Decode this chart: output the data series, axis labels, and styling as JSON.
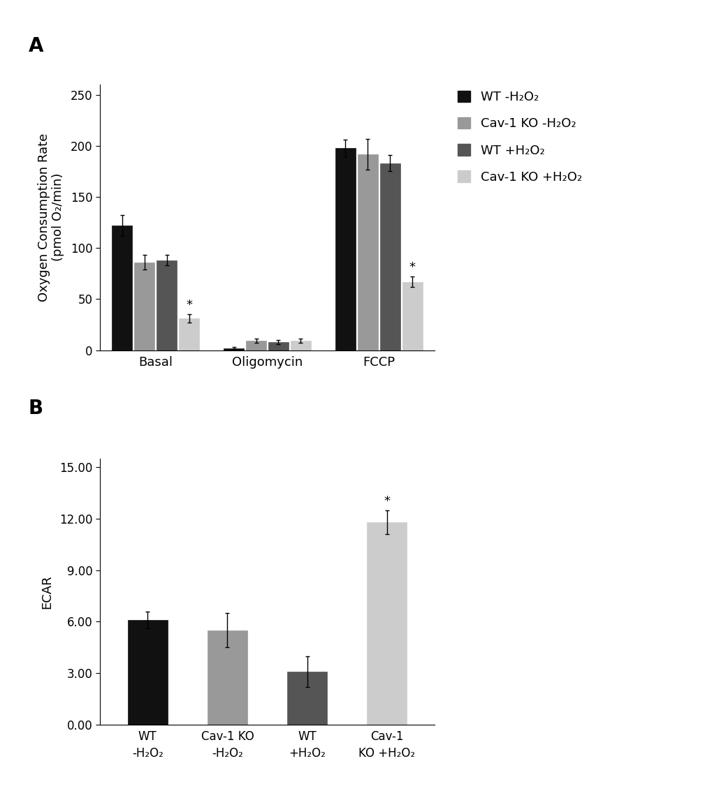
{
  "panel_A": {
    "groups": [
      "Basal",
      "Oligomycin",
      "FCCP"
    ],
    "series": [
      {
        "label": "WT -H₂O₂",
        "color": "#111111",
        "values": [
          122,
          2,
          198
        ],
        "errors": [
          10,
          1,
          8
        ]
      },
      {
        "label": "Cav-1 KO -H₂O₂",
        "color": "#999999",
        "values": [
          86,
          9,
          192
        ],
        "errors": [
          7,
          2,
          15
        ]
      },
      {
        "label": "WT +H₂O₂",
        "color": "#555555",
        "values": [
          88,
          8,
          183
        ],
        "errors": [
          5,
          2,
          8
        ]
      },
      {
        "label": "Cav-1 KO +H₂O₂",
        "color": "#cccccc",
        "values": [
          31,
          9,
          67
        ],
        "errors": [
          4,
          2,
          5
        ]
      }
    ],
    "ylabel": "Oxygen Consumption Rate\n(pmol O₂/min)",
    "ylim": [
      0,
      260
    ],
    "yticks": [
      0,
      50,
      100,
      150,
      200,
      250
    ],
    "sig_markers": {
      "Basal": [
        false,
        false,
        false,
        true
      ],
      "Oligomycin": [
        false,
        false,
        false,
        false
      ],
      "FCCP": [
        false,
        false,
        false,
        true
      ]
    },
    "panel_label": "A"
  },
  "panel_B": {
    "categories": [
      "WT\n-H₂O₂",
      "Cav-1 KO\n-H₂O₂",
      "WT\n+H₂O₂",
      "Cav-1\nKO +H₂O₂"
    ],
    "colors": [
      "#111111",
      "#999999",
      "#555555",
      "#cccccc"
    ],
    "values": [
      6.1,
      5.5,
      3.1,
      11.8
    ],
    "errors": [
      0.5,
      1.0,
      0.9,
      0.7
    ],
    "ylabel": "ECAR",
    "ylim": [
      0,
      15.5
    ],
    "yticks": [
      0.0,
      3.0,
      6.0,
      9.0,
      12.0,
      15.0
    ],
    "yticklabels": [
      "0.00",
      "3.00",
      "6.00",
      "9.00",
      "12.00",
      "15.00"
    ],
    "sig_markers": [
      false,
      false,
      false,
      true
    ],
    "panel_label": "B"
  },
  "background_color": "#ffffff",
  "bar_width": 0.2,
  "fontsize_label": 13,
  "fontsize_tick": 12,
  "fontsize_panel": 20
}
